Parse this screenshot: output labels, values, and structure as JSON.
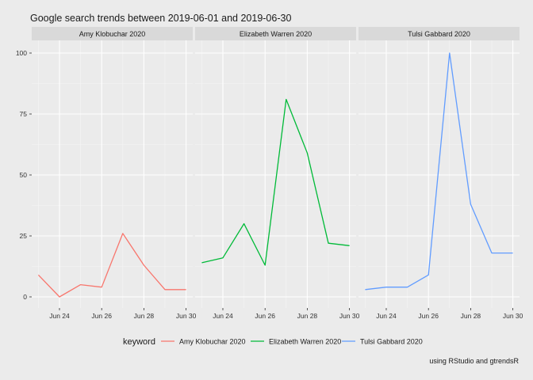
{
  "chart_data": {
    "type": "line",
    "title": "Google search trends between 2019-06-01 and 2019-06-30",
    "caption": "using RStudio and gtrendsR",
    "x": [
      "2019-06-23",
      "2019-06-24",
      "2019-06-25",
      "2019-06-26",
      "2019-06-27",
      "2019-06-28",
      "2019-06-29",
      "2019-06-30"
    ],
    "x_ticks": [
      "2019-06-24",
      "2019-06-26",
      "2019-06-28",
      "2019-06-30"
    ],
    "x_tick_labels": [
      "Jun 24",
      "Jun 26",
      "Jun 28",
      "Jun 30"
    ],
    "y_ticks": [
      0,
      25,
      50,
      75,
      100
    ],
    "ylim": [
      0,
      100
    ],
    "grid": true,
    "legend": {
      "title": "keyword",
      "position": "bottom"
    },
    "facets": [
      {
        "name": "Amy Klobuchar 2020",
        "color": "#F8766D",
        "values": [
          9,
          0,
          5,
          4,
          26,
          13,
          3,
          3
        ]
      },
      {
        "name": "Elizabeth Warren 2020",
        "color": "#00BA38",
        "values": [
          14,
          16,
          30,
          13,
          81,
          59,
          22,
          21
        ]
      },
      {
        "name": "Tulsi Gabbard 2020",
        "color": "#619CFF",
        "values": [
          3,
          4,
          4,
          9,
          100,
          38,
          18,
          18
        ]
      }
    ]
  }
}
